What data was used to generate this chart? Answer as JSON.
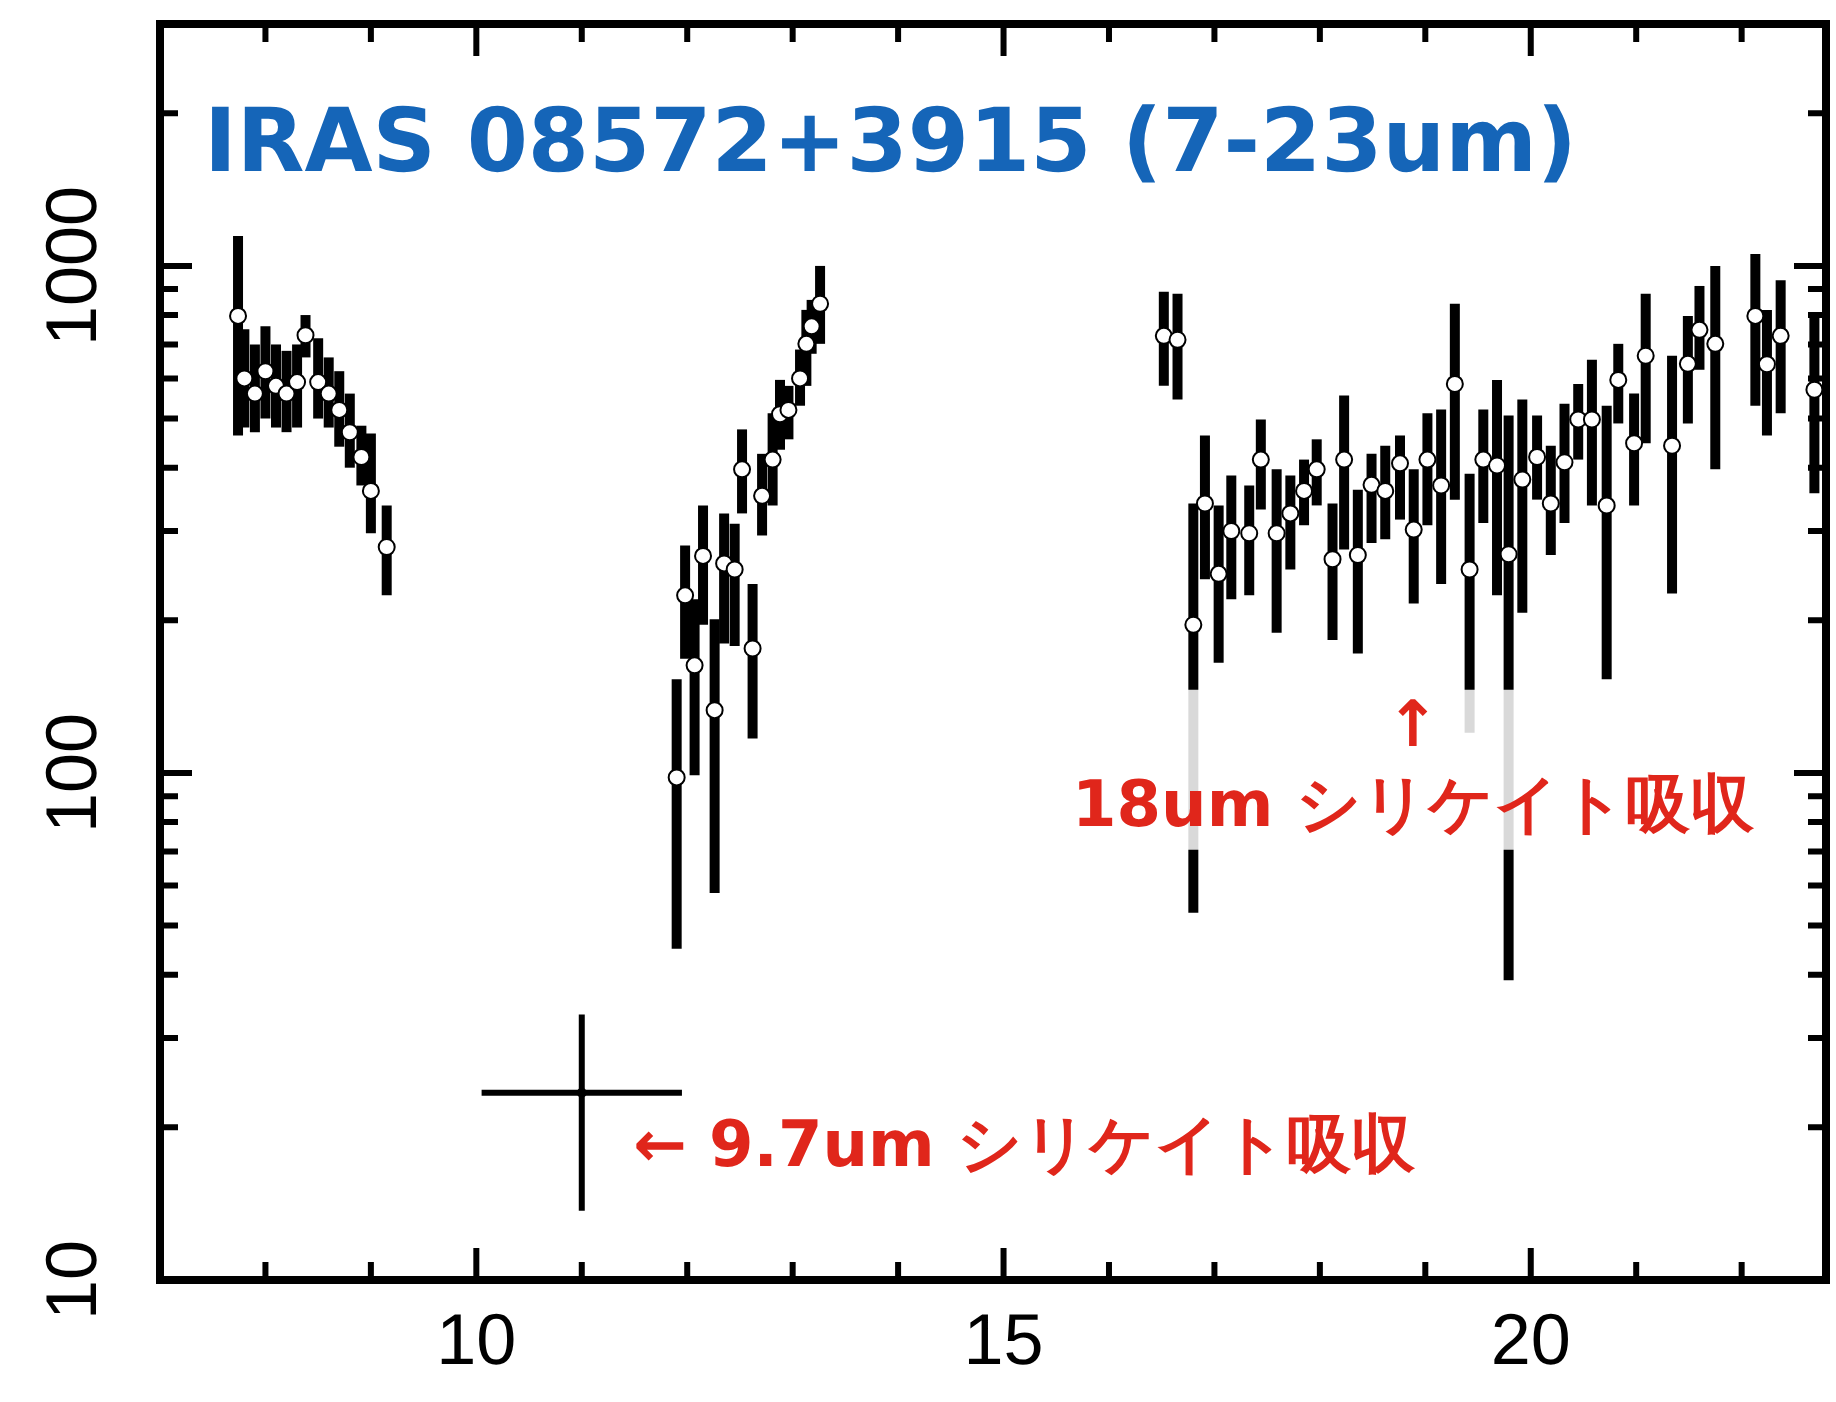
{
  "chart_data": {
    "type": "scatter",
    "title": "IRAS 08572+3915 (7-23um)",
    "xlim": [
      7,
      22.8
    ],
    "xticks": [
      {
        "value": 7,
        "label": null
      },
      {
        "value": 8,
        "label": null
      },
      {
        "value": 9,
        "label": null
      },
      10,
      {
        "value": 11,
        "label": null
      },
      {
        "value": 12,
        "label": null
      },
      {
        "value": 13,
        "label": null
      },
      {
        "value": 14,
        "label": null
      },
      15,
      {
        "value": 16,
        "label": null
      },
      {
        "value": 17,
        "label": null
      },
      {
        "value": 18,
        "label": null
      },
      {
        "value": 19,
        "label": null
      },
      20,
      {
        "value": 21,
        "label": null
      },
      {
        "value": 22,
        "label": null
      }
    ],
    "ylim": [
      10,
      3000
    ],
    "log": "y",
    "yticks": [
      10,
      {
        "value": 20,
        "label": null
      },
      {
        "value": 30,
        "label": null
      },
      {
        "value": 40,
        "label": null
      },
      {
        "value": 50,
        "label": null
      },
      {
        "value": 60,
        "label": null
      },
      {
        "value": 70,
        "label": null
      },
      {
        "value": 80,
        "label": null
      },
      {
        "value": 90,
        "label": null
      },
      100,
      {
        "value": 200,
        "label": null
      },
      {
        "value": 300,
        "label": null
      },
      {
        "value": 400,
        "label": null
      },
      {
        "value": 500,
        "label": null
      },
      {
        "value": 600,
        "label": null
      },
      {
        "value": 700,
        "label": null
      },
      {
        "value": 800,
        "label": null
      },
      {
        "value": 900,
        "label": null
      },
      1000,
      {
        "value": 2000,
        "label": null
      }
    ],
    "grid": false,
    "legend": false,
    "series": [
      {
        "color": "#000000",
        "marker": "circle",
        "x": [
          7.74,
          7.8,
          7.9,
          8.0,
          8.1,
          8.2,
          8.3,
          8.38,
          8.5,
          8.6,
          8.7,
          8.8,
          8.91,
          9.0,
          9.15,
          11.9,
          11.98,
          12.07,
          12.15,
          12.26,
          12.35,
          12.45,
          12.52,
          12.62,
          12.71,
          12.81,
          12.88,
          12.96,
          13.07,
          13.13,
          13.18,
          13.26,
          16.52,
          16.65,
          16.8,
          16.91,
          17.04,
          17.16,
          17.33,
          17.44,
          17.59,
          17.72,
          17.85,
          17.97,
          18.12,
          18.23,
          18.36,
          18.49,
          18.62,
          18.76,
          18.89,
          19.02,
          19.15,
          19.28,
          19.42,
          19.55,
          19.68,
          19.79,
          19.92,
          20.06,
          20.19,
          20.32,
          20.45,
          20.58,
          20.72,
          20.83,
          20.98,
          21.09,
          21.34,
          21.49,
          21.6,
          21.75,
          22.13,
          22.24,
          22.37,
          22.69
        ],
        "values": [
          797,
          600,
          560,
          620,
          580,
          560,
          590,
          730,
          590,
          560,
          520,
          470,
          420,
          360,
          279,
          98,
          224,
          163,
          268,
          133,
          259,
          252,
          397,
          176,
          352,
          415,
          510,
          520,
          600,
          702,
          760,
          842,
          728,
          715,
          196,
          340,
          247,
          300,
          297,
          415,
          297,
          325,
          360,
          397,
          264,
          415,
          269,
          370,
          360,
          408,
          302,
          415,
          369,
          585,
          252,
          415,
          404,
          270,
          379,
          420,
          340,
          410,
          498,
          498,
          337,
          596,
          447,
          665,
          442,
          641,
          748,
          702,
          797,
          640,
          728,
          570
        ],
        "errors": [
          [
            463,
            1145
          ],
          [
            480,
            750
          ],
          [
            470,
            700
          ],
          [
            500,
            760
          ],
          [
            480,
            700
          ],
          [
            470,
            680
          ],
          [
            480,
            700
          ],
          [
            660,
            800
          ],
          [
            500,
            720
          ],
          [
            480,
            660
          ],
          [
            440,
            620
          ],
          [
            400,
            560
          ],
          [
            369,
            484
          ],
          [
            297,
            467
          ],
          [
            224,
            337
          ],
          [
            45,
            153
          ],
          [
            168,
            281
          ],
          [
            99,
            220
          ],
          [
            196,
            337
          ],
          [
            58,
            201
          ],
          [
            180,
            325
          ],
          [
            178,
            310
          ],
          [
            325,
            476
          ],
          [
            117,
            236
          ],
          [
            294,
            426
          ],
          [
            337,
            512
          ],
          [
            434,
            596
          ],
          [
            455,
            580
          ],
          [
            530,
            684
          ],
          [
            580,
            819
          ],
          [
            671,
            857
          ],
          [
            702,
            1000
          ],
          [
            580,
            889
          ],
          [
            545,
            881
          ],
          [
            53,
            340
          ],
          [
            241,
            463
          ],
          [
            165,
            337
          ],
          [
            220,
            386
          ],
          [
            224,
            369
          ],
          [
            331,
            498
          ],
          [
            189,
            397
          ],
          [
            252,
            386
          ],
          [
            308,
            415
          ],
          [
            337,
            455
          ],
          [
            183,
            340
          ],
          [
            276,
            555
          ],
          [
            172,
            362
          ],
          [
            284,
            426
          ],
          [
            289,
            442
          ],
          [
            316,
            463
          ],
          [
            216,
            397
          ],
          [
            308,
            512
          ],
          [
            236,
            521
          ],
          [
            346,
            842
          ],
          [
            120,
            389
          ],
          [
            311,
            521
          ],
          [
            224,
            596
          ],
          [
            39,
            507
          ],
          [
            207,
            545
          ],
          [
            346,
            507
          ],
          [
            269,
            442
          ],
          [
            311,
            535
          ],
          [
            415,
            585
          ],
          [
            337,
            653
          ],
          [
            153,
            530
          ],
          [
            489,
            702
          ],
          [
            337,
            560
          ],
          [
            447,
            881
          ],
          [
            226,
            665
          ],
          [
            489,
            797
          ],
          [
            624,
            913
          ],
          [
            397,
            1000
          ],
          [
            530,
            1056
          ],
          [
            463,
            819
          ],
          [
            512,
            937
          ],
          [
            356,
            797
          ]
        ]
      },
      {
        "color": "#000000",
        "marker": "circle",
        "x": [
          11.0
        ],
        "values": [
          23.4
        ],
        "errors": [
          [
            13.7,
            33.4
          ]
        ],
        "xerrors": [
          0.95
        ]
      }
    ],
    "annotations": [
      "← 9.7um シリケイト吸収",
      "↑\n18um シリケイト吸収"
    ]
  }
}
